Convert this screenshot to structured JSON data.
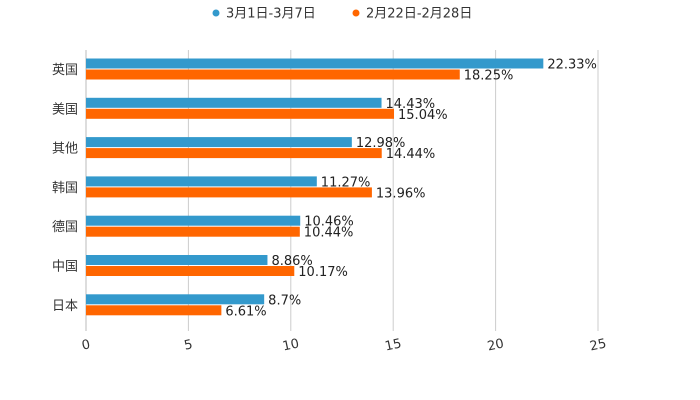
{
  "chart_data": {
    "type": "bar",
    "orientation": "horizontal",
    "categories": [
      "英国",
      "美国",
      "其他",
      "韩国",
      "德国",
      "中国",
      "日本"
    ],
    "series": [
      {
        "name": "3月1日-3月7日",
        "color": "#3399cc",
        "values": [
          22.33,
          14.43,
          12.98,
          11.27,
          10.46,
          8.86,
          8.7
        ],
        "labels": [
          "22.33%",
          "14.43%",
          "12.98%",
          "11.27%",
          "10.46%",
          "8.86%",
          "8.7%"
        ]
      },
      {
        "name": "2月22日-2月28日",
        "color": "#ff6600",
        "values": [
          18.25,
          15.04,
          14.44,
          13.96,
          10.44,
          10.17,
          6.61
        ],
        "labels": [
          "18.25%",
          "15.04%",
          "14.44%",
          "13.96%",
          "10.44%",
          "10.17%",
          "6.61%"
        ]
      }
    ],
    "xlim": [
      0,
      25
    ],
    "xticks": [
      "0",
      "5",
      "10",
      "15",
      "20",
      "25"
    ],
    "legend_position": "top-center",
    "grid": true
  }
}
